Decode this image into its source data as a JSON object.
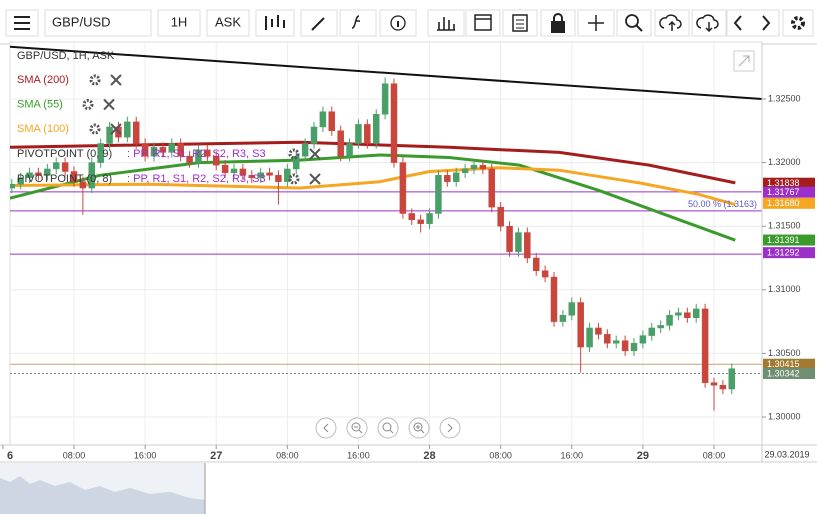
{
  "toolbar": {
    "symbol": "GBP/USD",
    "interval": "1H",
    "price_type": "ASK"
  },
  "chart_data": {
    "type": "candlestick",
    "title": "GBP/USD, 1H, ASK",
    "up_color": "#4a9f68",
    "down_color": "#c9463d",
    "x": [
      1,
      2,
      3,
      4,
      5,
      6,
      7,
      8,
      9,
      10,
      11,
      12,
      13,
      14,
      15,
      16,
      17,
      18,
      19,
      20,
      21,
      22,
      23,
      24,
      25,
      26,
      27,
      28,
      29,
      30,
      31,
      32,
      33,
      34,
      35,
      36,
      37,
      38,
      39,
      40,
      41,
      42,
      43,
      44,
      45,
      46,
      47,
      48,
      49,
      50,
      51,
      52,
      53,
      54,
      55,
      56,
      57,
      58,
      59,
      60,
      61,
      62,
      63,
      64,
      65,
      66,
      67,
      68,
      69,
      70,
      71,
      72,
      73,
      74,
      75,
      76,
      77,
      78,
      79,
      80,
      81,
      82
    ],
    "ohlc": [
      [
        1.318,
        1.3187,
        1.3176,
        1.3183
      ],
      [
        1.3183,
        1.3192,
        1.3179,
        1.3188
      ],
      [
        1.3188,
        1.3196,
        1.3184,
        1.3192
      ],
      [
        1.3192,
        1.3196,
        1.3186,
        1.319
      ],
      [
        1.319,
        1.3199,
        1.3186,
        1.3195
      ],
      [
        1.3195,
        1.3204,
        1.3191,
        1.32
      ],
      [
        1.32,
        1.3204,
        1.3189,
        1.3193
      ],
      [
        1.3193,
        1.3197,
        1.3181,
        1.3185
      ],
      [
        1.3185,
        1.3189,
        1.3159,
        1.318
      ],
      [
        1.318,
        1.3204,
        1.3176,
        1.32
      ],
      [
        1.32,
        1.3219,
        1.3196,
        1.3215
      ],
      [
        1.3215,
        1.3232,
        1.3211,
        1.3228
      ],
      [
        1.3228,
        1.3232,
        1.3216,
        1.322
      ],
      [
        1.322,
        1.3236,
        1.3216,
        1.3232
      ],
      [
        1.3232,
        1.3236,
        1.3211,
        1.3215
      ],
      [
        1.3215,
        1.3219,
        1.3201,
        1.3205
      ],
      [
        1.3205,
        1.3216,
        1.3201,
        1.3212
      ],
      [
        1.3212,
        1.3216,
        1.3204,
        1.3208
      ],
      [
        1.3208,
        1.3219,
        1.3204,
        1.3215
      ],
      [
        1.3215,
        1.3219,
        1.3201,
        1.3205
      ],
      [
        1.3205,
        1.3209,
        1.3196,
        1.32
      ],
      [
        1.32,
        1.3214,
        1.3196,
        1.321
      ],
      [
        1.321,
        1.3214,
        1.3201,
        1.3205
      ],
      [
        1.3205,
        1.3209,
        1.3194,
        1.3198
      ],
      [
        1.3198,
        1.3202,
        1.3188,
        1.3192
      ],
      [
        1.3192,
        1.3199,
        1.3188,
        1.3195
      ],
      [
        1.3195,
        1.3199,
        1.3186,
        1.319
      ],
      [
        1.319,
        1.3194,
        1.3184,
        1.3188
      ],
      [
        1.3188,
        1.3196,
        1.3184,
        1.3192
      ],
      [
        1.3192,
        1.3196,
        1.3186,
        1.319
      ],
      [
        1.319,
        1.3194,
        1.3167,
        1.3185
      ],
      [
        1.3185,
        1.3199,
        1.3181,
        1.3195
      ],
      [
        1.3195,
        1.3209,
        1.3191,
        1.3205
      ],
      [
        1.3205,
        1.3219,
        1.3201,
        1.3215
      ],
      [
        1.3215,
        1.3232,
        1.3211,
        1.3228
      ],
      [
        1.3228,
        1.3244,
        1.3224,
        1.324
      ],
      [
        1.324,
        1.3244,
        1.3221,
        1.3225
      ],
      [
        1.3225,
        1.3229,
        1.3201,
        1.3205
      ],
      [
        1.3205,
        1.3219,
        1.3201,
        1.3215
      ],
      [
        1.3215,
        1.3234,
        1.3211,
        1.323
      ],
      [
        1.323,
        1.3234,
        1.3211,
        1.3215
      ],
      [
        1.3215,
        1.3242,
        1.3211,
        1.3238
      ],
      [
        1.3238,
        1.3267,
        1.3234,
        1.3262
      ],
      [
        1.3262,
        1.3266,
        1.3196,
        1.32
      ],
      [
        1.32,
        1.3204,
        1.3156,
        1.316
      ],
      [
        1.316,
        1.3164,
        1.3151,
        1.3155
      ],
      [
        1.3155,
        1.3159,
        1.3145,
        1.3152
      ],
      [
        1.3152,
        1.3164,
        1.3148,
        1.316
      ],
      [
        1.316,
        1.3194,
        1.3156,
        1.319
      ],
      [
        1.319,
        1.3194,
        1.3181,
        1.3185
      ],
      [
        1.3185,
        1.3196,
        1.3181,
        1.3192
      ],
      [
        1.3192,
        1.3199,
        1.3188,
        1.3195
      ],
      [
        1.3195,
        1.3202,
        1.3191,
        1.3198
      ],
      [
        1.3198,
        1.3202,
        1.3191,
        1.3195
      ],
      [
        1.3195,
        1.3199,
        1.3161,
        1.3165
      ],
      [
        1.3165,
        1.3169,
        1.3146,
        1.315
      ],
      [
        1.315,
        1.3154,
        1.3126,
        1.313
      ],
      [
        1.313,
        1.3149,
        1.3126,
        1.3145
      ],
      [
        1.3145,
        1.3149,
        1.3121,
        1.3125
      ],
      [
        1.3125,
        1.3129,
        1.3111,
        1.3115
      ],
      [
        1.3115,
        1.3119,
        1.3106,
        1.311
      ],
      [
        1.311,
        1.3114,
        1.3071,
        1.3075
      ],
      [
        1.3075,
        1.3084,
        1.3071,
        1.308
      ],
      [
        1.308,
        1.3094,
        1.3076,
        1.309
      ],
      [
        1.309,
        1.3094,
        1.3035,
        1.3055
      ],
      [
        1.3055,
        1.3074,
        1.3051,
        1.307
      ],
      [
        1.307,
        1.3074,
        1.3061,
        1.3065
      ],
      [
        1.3065,
        1.3069,
        1.3054,
        1.3058
      ],
      [
        1.3058,
        1.3064,
        1.3054,
        1.306
      ],
      [
        1.306,
        1.3064,
        1.3048,
        1.3052
      ],
      [
        1.3052,
        1.3062,
        1.3048,
        1.3058
      ],
      [
        1.3058,
        1.3068,
        1.3054,
        1.3064
      ],
      [
        1.3064,
        1.3074,
        1.306,
        1.307
      ],
      [
        1.307,
        1.3076,
        1.3066,
        1.3072
      ],
      [
        1.3072,
        1.3084,
        1.3068,
        1.308
      ],
      [
        1.308,
        1.3086,
        1.3076,
        1.3082
      ],
      [
        1.3082,
        1.3086,
        1.3074,
        1.3078
      ],
      [
        1.3078,
        1.3089,
        1.3074,
        1.3085
      ],
      [
        1.3085,
        1.3089,
        1.3023,
        1.3027
      ],
      [
        1.3027,
        1.3031,
        1.3005,
        1.3025
      ],
      [
        1.3025,
        1.3029,
        1.3018,
        1.3022
      ],
      [
        1.3022,
        1.3042,
        1.3018,
        1.3038
      ]
    ],
    "series": [
      {
        "name": "SMA (200)",
        "color": "#a51c1c",
        "x": [
          0.8,
          16.5,
          33.4,
          50.2,
          62.6,
          72.7,
          82.4
        ],
        "values": [
          1.3212,
          1.3214,
          1.3216,
          1.3212,
          1.3208,
          1.3198,
          1.3184
        ]
      },
      {
        "name": "SMA (55)",
        "color": "#3a9a2c",
        "x": [
          0.8,
          10.9,
          22.1,
          33.4,
          42.4,
          50.2,
          58.1,
          67.1,
          76.1,
          82.4
        ],
        "values": [
          1.3172,
          1.319,
          1.32,
          1.3202,
          1.3206,
          1.3204,
          1.3198,
          1.3178,
          1.3155,
          1.3139
        ]
      },
      {
        "name": "SMA (100)",
        "color": "#f5a623",
        "x": [
          0.8,
          16.5,
          33.4,
          42.4,
          48,
          55.8,
          62.6,
          71.6,
          78.3,
          82.4
        ],
        "values": [
          1.3182,
          1.3183,
          1.318,
          1.3185,
          1.3193,
          1.3196,
          1.3194,
          1.3184,
          1.3175,
          1.3167
        ]
      }
    ],
    "trend_line": {
      "color": "#111111",
      "x": [
        0.8,
        85.4
      ],
      "values": [
        1.3291,
        1.325
      ]
    },
    "pivot_legends": [
      {
        "name": "PIVOTPOINT (0, 9)",
        "items": ": PP, R1, S1, R2, S2, R3, S3"
      },
      {
        "name": "PIVOTPOINT (0, 8)",
        "items": ": PP, R1, S1, R2, S2, R3, S3"
      }
    ],
    "levels": [
      {
        "value": 1.3177,
        "color": "#9b30c8"
      },
      {
        "value": 1.3162,
        "color": "#9b30c8"
      },
      {
        "value": 1.3128,
        "color": "#9b30c8"
      },
      {
        "value": 1.30415,
        "color": "#c8a070"
      }
    ],
    "last_price_line": {
      "value": 1.30342,
      "color": "#7a8a7a"
    },
    "annotation": {
      "value": 1.3163,
      "label": "50.00 % (1.3163)"
    },
    "price_labels": [
      {
        "value": 1.31838,
        "label": "1.31838",
        "color": "#a51c1c"
      },
      {
        "value": 1.31767,
        "label": "1.31767",
        "color": "#9b30c8"
      },
      {
        "value": 1.3168,
        "label": "1.31680",
        "color": "#f5a623"
      },
      {
        "value": 1.31391,
        "label": "1.31391",
        "color": "#3a9a2c"
      },
      {
        "value": 1.31292,
        "label": "1.31292",
        "color": "#9b30c8"
      },
      {
        "value": 1.30415,
        "label": "1.30415",
        "color": "#a07a30"
      },
      {
        "value": 1.30342,
        "label": "1.30342",
        "color": "#6f8f72"
      }
    ],
    "xlim": [
      0.8,
      85.4
    ],
    "ylim": [
      1.2978,
      1.32948
    ],
    "xticks": [
      {
        "value": 0,
        "label": "6"
      },
      {
        "value": 8,
        "label": "08:00"
      },
      {
        "value": 16,
        "label": "16:00"
      },
      {
        "value": 24,
        "label": "27"
      },
      {
        "value": 32,
        "label": "08:00"
      },
      {
        "value": 40,
        "label": "16:00"
      },
      {
        "value": 48,
        "label": "28"
      },
      {
        "value": 56,
        "label": "08:00"
      },
      {
        "value": 64,
        "label": "16:00"
      },
      {
        "value": 72,
        "label": "29"
      },
      {
        "value": 80,
        "label": "08:00"
      }
    ],
    "yticks": [
      {
        "value": 1.325,
        "label": "1.32500"
      },
      {
        "value": 1.32,
        "label": "1.32000"
      },
      {
        "value": 1.315,
        "label": "1.31500"
      },
      {
        "value": 1.31,
        "label": "1.31000"
      },
      {
        "value": 1.305,
        "label": "1.30500"
      },
      {
        "value": 1.3,
        "label": "1.30000"
      }
    ],
    "date_label": "29.03.2019",
    "grid": true
  }
}
